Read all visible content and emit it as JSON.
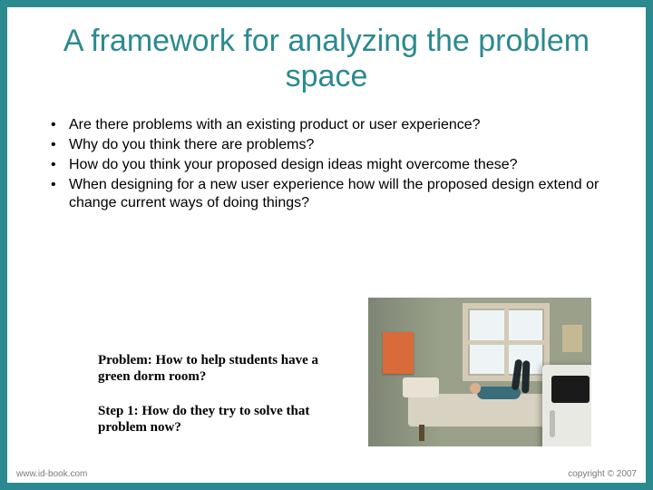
{
  "title": "A framework for analyzing the problem space",
  "bullets": [
    "Are there problems with an existing product or user experience?",
    "Why do you think there are problems?",
    "How do you think your proposed design ideas might overcome these?",
    "When designing for a new user experience how will the proposed design extend or change current ways of doing things?"
  ],
  "caption": {
    "problem": "Problem: How to help students have a green dorm room?",
    "step1": "Step 1:  How do they try to solve that problem now?"
  },
  "footer": {
    "left": "www.id-book.com",
    "right": "copyright © 2007"
  },
  "colors": {
    "frame": "#2b8a8f",
    "title": "#2b8a8f",
    "slide_bg": "#ffffff",
    "text": "#000000",
    "footer_text": "#7a7a7a"
  }
}
